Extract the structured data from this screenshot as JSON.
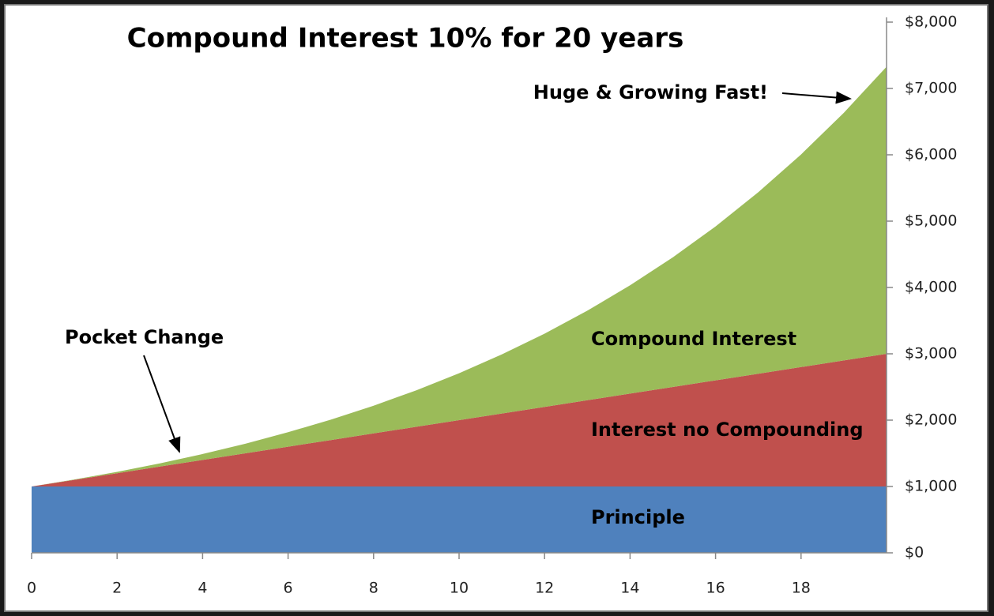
{
  "chart_data": {
    "type": "stacked-area",
    "title": "Compound Interest 10% for 20 years",
    "x": [
      0,
      1,
      2,
      3,
      4,
      5,
      6,
      7,
      8,
      9,
      10,
      11,
      12,
      13,
      14,
      15,
      16,
      17,
      18,
      19,
      20
    ],
    "series": [
      {
        "name": "Principle",
        "color": "#4f81bd",
        "values": [
          1000,
          1000,
          1000,
          1000,
          1000,
          1000,
          1000,
          1000,
          1000,
          1000,
          1000,
          1000,
          1000,
          1000,
          1000,
          1000,
          1000,
          1000,
          1000,
          1000,
          1000
        ]
      },
      {
        "name": "Interest no Compounding",
        "color": "#c0504d",
        "values": [
          0,
          100,
          200,
          300,
          400,
          500,
          600,
          700,
          800,
          900,
          1000,
          1100,
          1200,
          1300,
          1400,
          1500,
          1600,
          1700,
          1800,
          1900,
          2000
        ]
      },
      {
        "name": "Compound Interest",
        "color": "#9bbb59",
        "values": [
          0,
          5,
          20,
          48,
          89,
          145,
          218,
          308,
          418,
          550,
          707,
          891,
          1104,
          1350,
          1632,
          1954,
          2320,
          2736,
          3205,
          3733,
          4328
        ]
      }
    ],
    "xlim": [
      0,
      20
    ],
    "xticks": [
      0,
      2,
      4,
      6,
      8,
      10,
      12,
      14,
      16,
      18
    ],
    "ylim": [
      0,
      8000
    ],
    "yticks": [
      {
        "value": 0,
        "label": "$0"
      },
      {
        "value": 1000,
        "label": "$1,000"
      },
      {
        "value": 2000,
        "label": "$2,000"
      },
      {
        "value": 3000,
        "label": "$3,000"
      },
      {
        "value": 4000,
        "label": "$4,000"
      },
      {
        "value": 5000,
        "label": "$5,000"
      },
      {
        "value": 6000,
        "label": "$6,000"
      },
      {
        "value": 7000,
        "label": "$7,000"
      },
      {
        "value": 8000,
        "label": "$8,000"
      }
    ],
    "y_axis_side": "right",
    "annotations": [
      "Pocket Change",
      "Huge & Growing Fast!"
    ]
  }
}
